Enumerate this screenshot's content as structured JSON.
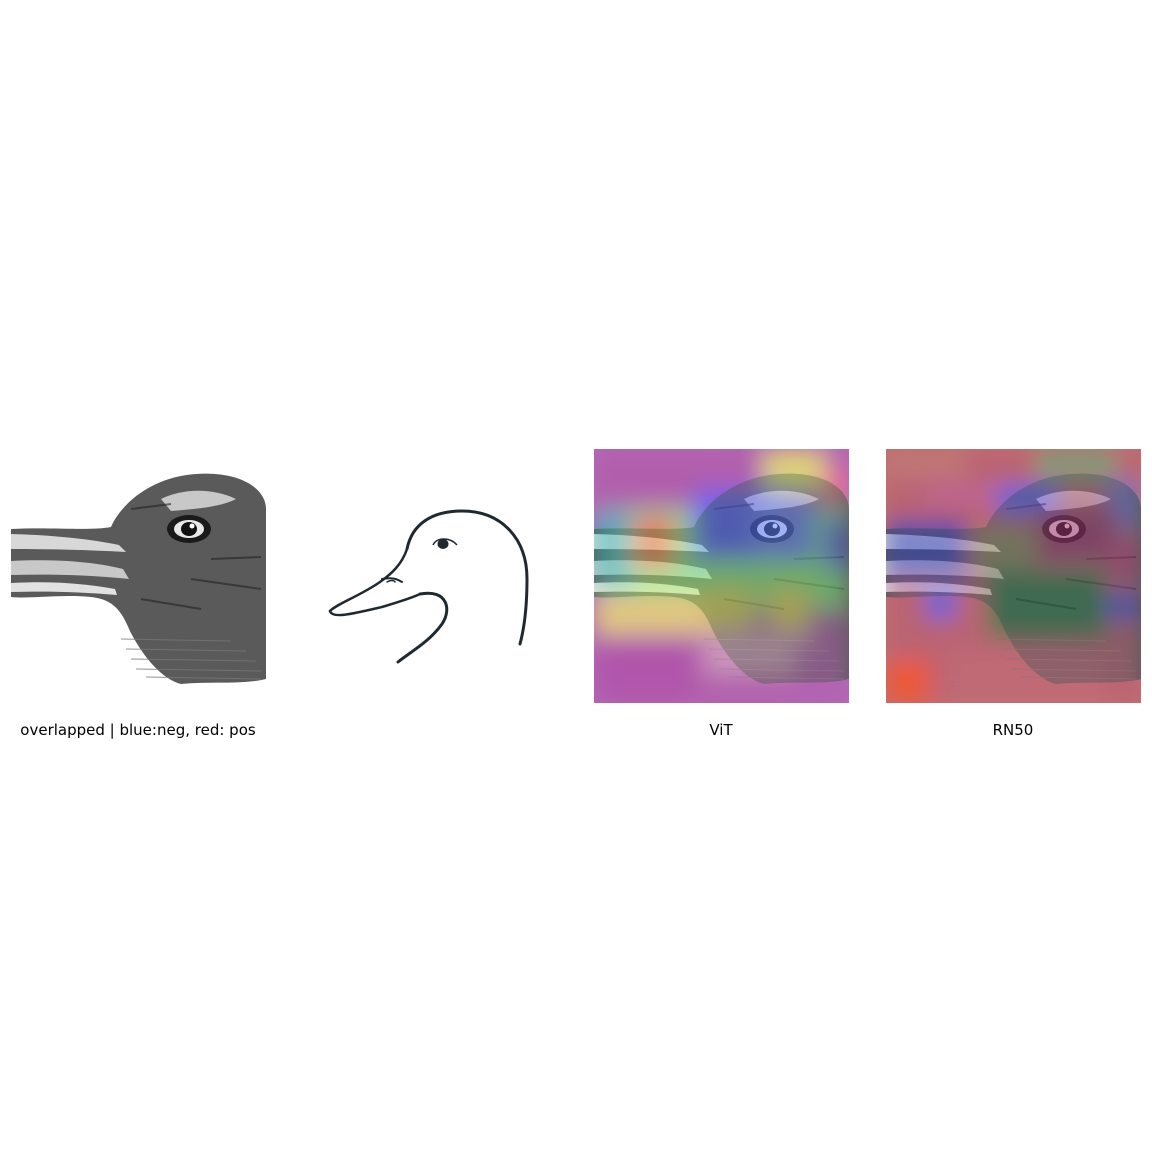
{
  "figure": {
    "panels": [
      {
        "caption": "overlapped | blue:neg, red: pos",
        "image": "rabbit-duck-illusion-drawing"
      },
      {
        "caption": "",
        "image": "duck-head-line-drawing"
      },
      {
        "caption": "ViT",
        "image": "vit-heatmap-overlay"
      },
      {
        "caption": "RN50",
        "image": "rn50-heatmap-overlay"
      }
    ],
    "legend_colors": {
      "negative": "#3050ff",
      "positive": "#ff3030"
    }
  }
}
